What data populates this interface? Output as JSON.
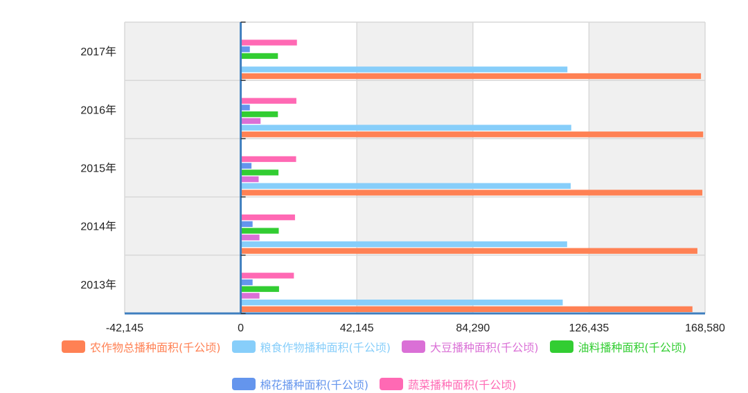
{
  "chart_data": {
    "type": "bar",
    "orientation": "horizontal",
    "categories": [
      "2013年",
      "2014年",
      "2015年",
      "2016年",
      "2017年"
    ],
    "series": [
      {
        "name": "农作物总播种面积(千公顷)",
        "color": "#FF8154",
        "values": [
          164000,
          165800,
          167600,
          167900,
          167100
        ]
      },
      {
        "name": "粮食作物播种面积(千公顷)",
        "color": "#87CEFA",
        "values": [
          116900,
          118500,
          119800,
          120000,
          118600
        ]
      },
      {
        "name": "大豆播种面积(千公顷)",
        "color": "#DA70D6",
        "values": [
          6800,
          6800,
          6500,
          7200,
          0
        ]
      },
      {
        "name": "油料播种面积(千公顷)",
        "color": "#32CD32",
        "values": [
          13900,
          13800,
          13700,
          13500,
          13500
        ]
      },
      {
        "name": "棉花播种面积(千公顷)",
        "color": "#6495ED",
        "values": [
          4300,
          4300,
          3900,
          3300,
          3300
        ]
      },
      {
        "name": "蔬菜播种面积(千公顷)",
        "color": "#FF69B4",
        "values": [
          19300,
          19700,
          20100,
          20200,
          20400
        ]
      }
    ],
    "xlim": [
      -42145,
      168580
    ],
    "xticks": [
      "-42,145",
      "0",
      "42,145",
      "84,290",
      "126,435",
      "168,580"
    ],
    "xtick_values": [
      -42145,
      0,
      42145,
      84290,
      126435,
      168580
    ],
    "grid": true,
    "legend_position": "bottom"
  }
}
